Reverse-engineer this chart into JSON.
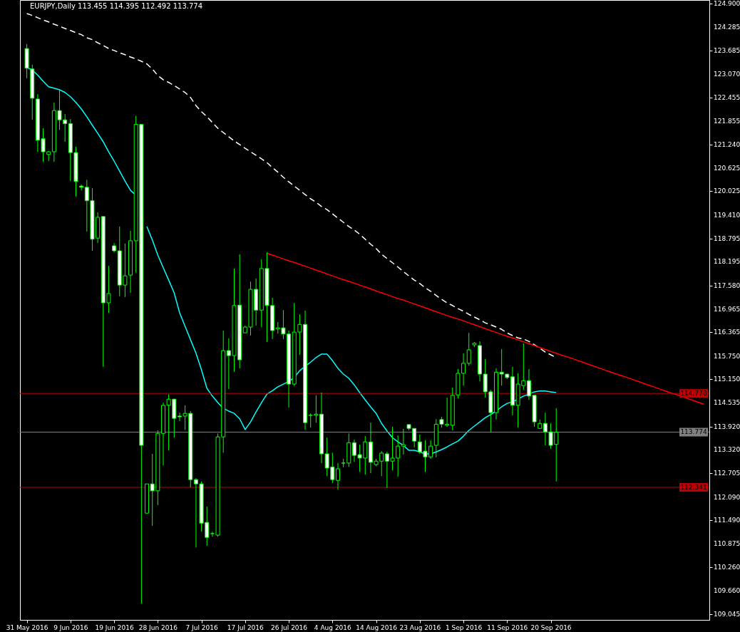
{
  "chart_data": {
    "type": "candlestick",
    "title": "EURJPY,Daily 113.455 114.395 112.492 113.774",
    "color": "#00ff00",
    "categories": [
      "31 May 2016",
      null,
      null,
      null,
      null,
      null,
      null,
      null,
      "9 Jun 2016",
      null,
      null,
      null,
      null,
      null,
      null,
      null,
      "19 Jun 2016",
      null,
      null,
      null,
      null,
      null,
      null,
      null,
      "28 Jun 2016",
      null,
      null,
      null,
      null,
      null,
      null,
      null,
      "7 Jul 2016",
      null,
      null,
      null,
      null,
      null,
      null,
      null,
      "17 Jul 2016",
      null,
      null,
      null,
      null,
      null,
      null,
      null,
      "26 Jul 2016",
      null,
      null,
      null,
      null,
      null,
      null,
      null,
      "4 Aug 2016",
      null,
      null,
      null,
      null,
      null,
      null,
      null,
      "14 Aug 2016",
      null,
      null,
      null,
      null,
      null,
      null,
      null,
      "23 Aug 2016",
      null,
      null,
      null,
      null,
      null,
      null,
      null,
      "1 Sep 2016",
      null,
      null,
      null,
      null,
      null,
      null,
      null,
      "11 Sep 2016",
      null,
      null,
      null,
      null,
      null,
      null,
      null,
      "20 Sep 2016",
      null,
      null,
      null,
      null,
      null,
      null,
      null,
      null,
      null,
      null,
      null,
      null,
      null,
      null,
      null,
      null,
      null,
      null,
      null,
      null,
      null,
      null,
      null,
      null,
      null,
      null,
      null,
      null
    ],
    "ohlc": [
      [
        123.73,
        123.85,
        122.96,
        123.22
      ],
      [
        123.2,
        123.31,
        121.88,
        122.44
      ],
      [
        122.42,
        122.55,
        121.05,
        121.35
      ],
      [
        121.39,
        121.66,
        120.79,
        121.05
      ],
      [
        120.98,
        121.07,
        120.81,
        121.05
      ],
      [
        121.05,
        122.33,
        120.79,
        122.12
      ],
      [
        122.12,
        122.68,
        121.62,
        121.88
      ],
      [
        121.88,
        122.03,
        121.31,
        121.78
      ],
      [
        121.78,
        121.9,
        120.29,
        121.03
      ],
      [
        121.03,
        121.18,
        119.89,
        120.28
      ],
      [
        120.16,
        120.2,
        120.05,
        120.13
      ],
      [
        120.13,
        120.32,
        118.98,
        119.78
      ],
      [
        119.78,
        120.11,
        118.48,
        118.78
      ],
      [
        118.81,
        119.48,
        118.68,
        119.35
      ],
      [
        119.37,
        119.37,
        115.47,
        117.13
      ],
      [
        117.13,
        118.09,
        116.87,
        117.37
      ],
      [
        118.61,
        118.68,
        118.44,
        118.48
      ],
      [
        118.48,
        119.11,
        117.3,
        117.59
      ],
      [
        117.59,
        118.67,
        117.28,
        117.83
      ],
      [
        117.85,
        119.0,
        117.39,
        118.74
      ],
      [
        118.74,
        121.98,
        117.91,
        121.76
      ],
      [
        121.76,
        121.76,
        109.32,
        113.43
      ],
      [
        111.67,
        112.43,
        111.67,
        112.43
      ],
      [
        112.43,
        113.21,
        111.34,
        112.25
      ],
      [
        112.25,
        113.82,
        111.88,
        113.74
      ],
      [
        113.74,
        114.54,
        112.91,
        114.47
      ],
      [
        114.47,
        114.76,
        113.3,
        114.63
      ],
      [
        114.63,
        114.63,
        113.63,
        114.13
      ],
      [
        114.19,
        114.28,
        114.06,
        114.17
      ],
      [
        114.19,
        114.47,
        113.83,
        114.26
      ],
      [
        114.26,
        114.32,
        112.34,
        112.54
      ],
      [
        112.54,
        112.58,
        110.78,
        112.43
      ],
      [
        112.43,
        112.49,
        111.19,
        111.41
      ],
      [
        111.43,
        111.84,
        110.82,
        111.04
      ],
      [
        111.14,
        111.19,
        111.06,
        111.14
      ],
      [
        111.1,
        113.74,
        111.06,
        113.65
      ],
      [
        113.65,
        116.41,
        113.24,
        115.89
      ],
      [
        115.89,
        116.21,
        114.89,
        115.76
      ],
      [
        115.76,
        118.02,
        115.34,
        117.06
      ],
      [
        117.07,
        118.39,
        115.43,
        115.65
      ],
      [
        116.35,
        116.54,
        116.35,
        116.5
      ],
      [
        116.5,
        117.68,
        116.28,
        117.48
      ],
      [
        117.48,
        117.76,
        116.54,
        116.94
      ],
      [
        116.94,
        118.26,
        116.5,
        118.02
      ],
      [
        118.02,
        118.44,
        116.11,
        117.06
      ],
      [
        117.06,
        117.26,
        116.19,
        116.41
      ],
      [
        116.45,
        116.63,
        116.33,
        116.48
      ],
      [
        116.48,
        116.94,
        116.19,
        116.32
      ],
      [
        116.32,
        116.41,
        114.41,
        115.02
      ],
      [
        115.02,
        117.13,
        114.97,
        116.37
      ],
      [
        116.37,
        116.83,
        115.78,
        116.57
      ],
      [
        116.57,
        116.93,
        113.84,
        114.02
      ],
      [
        114.21,
        114.26,
        113.89,
        114.21
      ],
      [
        114.21,
        114.73,
        114.02,
        114.24
      ],
      [
        114.24,
        114.8,
        112.97,
        113.21
      ],
      [
        113.21,
        113.63,
        112.63,
        112.84
      ],
      [
        112.87,
        113.24,
        112.45,
        112.54
      ],
      [
        112.52,
        112.97,
        112.28,
        112.82
      ],
      [
        112.97,
        113.08,
        112.86,
        112.97
      ],
      [
        112.97,
        113.74,
        112.87,
        113.5
      ],
      [
        113.5,
        113.58,
        113.0,
        113.17
      ],
      [
        113.19,
        113.45,
        112.74,
        113.1
      ],
      [
        113.1,
        113.67,
        112.67,
        113.52
      ],
      [
        113.52,
        114.02,
        112.71,
        112.99
      ],
      [
        112.93,
        113.08,
        112.89,
        113.02
      ],
      [
        113.02,
        113.28,
        112.63,
        113.23
      ],
      [
        113.21,
        113.26,
        112.32,
        113.02
      ],
      [
        113.02,
        113.91,
        112.78,
        113.1
      ],
      [
        113.1,
        113.69,
        112.62,
        113.41
      ],
      [
        113.41,
        113.86,
        113.19,
        113.45
      ],
      [
        113.97,
        113.97,
        113.82,
        113.87
      ],
      [
        113.87,
        113.87,
        113.38,
        113.54
      ],
      [
        113.52,
        113.71,
        113.21,
        113.26
      ],
      [
        113.28,
        113.56,
        112.74,
        113.13
      ],
      [
        113.13,
        113.56,
        113.08,
        113.41
      ],
      [
        113.43,
        114.11,
        113.12,
        113.98
      ],
      [
        114.1,
        114.17,
        113.89,
        113.98
      ],
      [
        113.95,
        114.67,
        113.91,
        113.98
      ],
      [
        113.95,
        114.93,
        113.82,
        114.73
      ],
      [
        114.74,
        115.41,
        114.65,
        115.3
      ],
      [
        115.3,
        115.82,
        114.98,
        115.56
      ],
      [
        115.56,
        116.35,
        115.5,
        115.91
      ],
      [
        116.04,
        116.11,
        115.98,
        116.08
      ],
      [
        116.02,
        116.13,
        115.09,
        115.28
      ],
      [
        115.28,
        115.67,
        114.67,
        114.82
      ],
      [
        114.82,
        114.87,
        113.78,
        114.28
      ],
      [
        114.28,
        115.43,
        114.1,
        115.33
      ],
      [
        115.33,
        115.93,
        114.98,
        115.28
      ],
      [
        115.28,
        115.28,
        115.15,
        115.19
      ],
      [
        115.21,
        115.47,
        114.21,
        114.47
      ],
      [
        114.47,
        115.3,
        113.89,
        115.02
      ],
      [
        114.98,
        116.08,
        114.87,
        115.11
      ],
      [
        115.11,
        115.41,
        114.61,
        114.71
      ],
      [
        114.73,
        114.73,
        113.91,
        114.04
      ],
      [
        113.87,
        114.1,
        113.87,
        114.0
      ],
      [
        114.0,
        114.28,
        113.43,
        113.78
      ],
      [
        113.78,
        114.0,
        113.34,
        113.43
      ],
      [
        113.455,
        114.395,
        112.492,
        113.774
      ],
      null,
      null,
      null,
      null,
      null,
      null,
      null,
      null,
      null,
      null,
      null,
      null,
      null,
      null,
      null,
      null,
      null,
      null,
      null,
      null,
      null,
      null,
      null,
      null,
      null,
      null,
      null
    ],
    "series": [
      {
        "type": "line",
        "color": "#00ffff",
        "values": [
          123.24,
          123.17,
          123.04,
          122.88,
          122.74,
          122.7,
          122.66,
          122.59,
          122.48,
          122.33,
          122.16,
          121.96,
          121.74,
          121.53,
          121.31,
          121.05,
          120.81,
          120.55,
          120.29,
          120.05,
          119.92,
          null,
          119.11,
          118.76,
          118.37,
          118.04,
          117.72,
          117.39,
          116.87,
          116.52,
          116.17,
          115.82,
          115.39,
          114.91,
          114.71,
          114.54,
          114.39,
          114.32,
          114.26,
          114.12,
          113.84,
          114.04,
          114.3,
          114.54,
          114.76,
          114.85,
          114.95,
          115.02,
          115.09,
          115.19,
          115.37,
          115.48,
          115.59,
          115.71,
          115.8,
          115.8,
          115.63,
          115.43,
          115.28,
          115.17,
          115.0,
          114.8,
          114.61,
          114.43,
          114.26,
          114.0,
          113.8,
          113.63,
          113.52,
          113.43,
          113.3,
          113.3,
          113.26,
          113.21,
          113.21,
          113.26,
          113.32,
          113.39,
          113.47,
          113.54,
          113.67,
          113.82,
          113.93,
          114.04,
          114.15,
          114.23,
          114.32,
          114.43,
          114.52,
          114.56,
          114.63,
          114.71,
          114.76,
          114.82,
          114.84,
          114.84,
          114.82,
          114.8,
          null,
          null,
          null,
          null,
          null,
          null,
          null,
          null,
          null,
          null,
          null,
          null,
          null,
          null,
          null,
          null,
          null,
          null,
          null,
          null,
          null,
          null,
          null,
          null,
          null,
          null,
          null
        ]
      },
      {
        "type": "line",
        "color": "#ffffff",
        "line_style": "dashed",
        "values": [
          124.64,
          124.59,
          124.53,
          124.47,
          124.42,
          124.36,
          124.31,
          124.25,
          124.2,
          124.14,
          124.09,
          124.01,
          123.96,
          123.88,
          123.81,
          123.73,
          123.68,
          123.62,
          123.57,
          123.51,
          123.46,
          123.4,
          123.33,
          123.2,
          123.03,
          122.92,
          122.85,
          122.77,
          122.68,
          122.59,
          122.46,
          122.25,
          122.09,
          121.96,
          121.81,
          121.66,
          121.55,
          121.44,
          121.33,
          121.24,
          121.14,
          121.05,
          120.96,
          120.87,
          120.77,
          120.64,
          120.52,
          120.39,
          120.27,
          120.16,
          120.05,
          119.94,
          119.83,
          119.74,
          119.63,
          119.55,
          119.44,
          119.33,
          119.22,
          119.11,
          119.02,
          118.91,
          118.78,
          118.65,
          118.54,
          118.39,
          118.28,
          118.17,
          118.06,
          117.94,
          117.83,
          117.72,
          117.63,
          117.52,
          117.43,
          117.32,
          117.22,
          117.13,
          117.06,
          116.98,
          116.91,
          116.83,
          116.76,
          116.69,
          116.61,
          116.56,
          116.5,
          116.44,
          116.35,
          116.28,
          116.22,
          116.19,
          116.13,
          116.04,
          115.95,
          115.85,
          115.78,
          115.71,
          null,
          null,
          null,
          null,
          null,
          null,
          null,
          null,
          null,
          null,
          null,
          null,
          null,
          null,
          null,
          null,
          null,
          null,
          null,
          null,
          null,
          null,
          null,
          null,
          null,
          null,
          null
        ]
      },
      {
        "type": "line",
        "color": "#ff0000",
        "values": [
          null,
          null,
          null,
          null,
          null,
          null,
          null,
          null,
          null,
          null,
          null,
          null,
          null,
          null,
          null,
          null,
          null,
          null,
          null,
          null,
          null,
          null,
          null,
          null,
          null,
          null,
          null,
          null,
          null,
          null,
          null,
          null,
          null,
          null,
          null,
          null,
          null,
          null,
          null,
          null,
          null,
          null,
          null,
          null,
          118.42,
          118.37,
          118.32,
          118.27,
          118.22,
          118.18,
          118.13,
          118.08,
          118.03,
          117.98,
          117.93,
          117.88,
          117.83,
          117.78,
          117.73,
          117.69,
          117.64,
          117.59,
          117.54,
          117.49,
          117.44,
          117.39,
          117.34,
          117.29,
          117.24,
          117.2,
          117.15,
          117.1,
          117.05,
          117.0,
          116.95,
          116.9,
          116.85,
          116.8,
          116.75,
          116.71,
          116.66,
          116.61,
          116.56,
          116.51,
          116.46,
          116.41,
          116.36,
          116.31,
          116.26,
          116.22,
          116.17,
          116.12,
          116.07,
          116.02,
          115.97,
          115.92,
          115.87,
          115.82,
          115.77,
          115.73,
          115.68,
          115.63,
          115.58,
          115.53,
          115.48,
          115.43,
          115.38,
          115.33,
          115.28,
          115.24,
          115.19,
          115.14,
          115.09,
          115.04,
          114.99,
          114.94,
          114.89,
          114.84,
          114.79,
          114.75,
          114.7,
          114.65,
          114.6,
          114.55,
          114.5
        ]
      }
    ],
    "ylim": [
      108.9,
      124.99
    ],
    "yticks": [
      {
        "value": 124.9,
        "label": "124.900"
      },
      {
        "value": 124.285,
        "label": "124.285"
      },
      {
        "value": 123.685,
        "label": "123.685"
      },
      {
        "value": 123.07,
        "label": "123.070"
      },
      {
        "value": 122.455,
        "label": "122.455"
      },
      {
        "value": 121.855,
        "label": "121.855"
      },
      {
        "value": 121.24,
        "label": "121.240"
      },
      {
        "value": 120.625,
        "label": "120.625"
      },
      {
        "value": 120.025,
        "label": "120.025"
      },
      {
        "value": 119.41,
        "label": "119.410"
      },
      {
        "value": 118.795,
        "label": "118.795"
      },
      {
        "value": 118.195,
        "label": "118.195"
      },
      {
        "value": 117.58,
        "label": "117.580"
      },
      {
        "value": 116.965,
        "label": "116.965"
      },
      {
        "value": 116.365,
        "label": "116.365"
      },
      {
        "value": 115.75,
        "label": "115.750"
      },
      {
        "value": 115.15,
        "label": "115.150"
      },
      {
        "value": 114.535,
        "label": "114.535"
      },
      {
        "value": 113.92,
        "label": "113.920"
      },
      {
        "value": 113.32,
        "label": "113.320"
      },
      {
        "value": 112.705,
        "label": "112.705"
      },
      {
        "value": 112.09,
        "label": "112.090"
      },
      {
        "value": 111.49,
        "label": "111.490"
      },
      {
        "value": 110.875,
        "label": "110.875"
      },
      {
        "value": 110.26,
        "label": "110.260"
      },
      {
        "value": 109.66,
        "label": "109.660"
      },
      {
        "value": 109.045,
        "label": "109.045"
      }
    ],
    "ref_lines": [
      {
        "axis": "y",
        "value": 114.778,
        "label": "114.778",
        "color": "#c00000"
      },
      {
        "axis": "y",
        "value": 113.774,
        "label": "113.774",
        "color": "#808080"
      },
      {
        "axis": "y",
        "value": 112.341,
        "label": "112.341",
        "color": "#c00000"
      }
    ]
  }
}
